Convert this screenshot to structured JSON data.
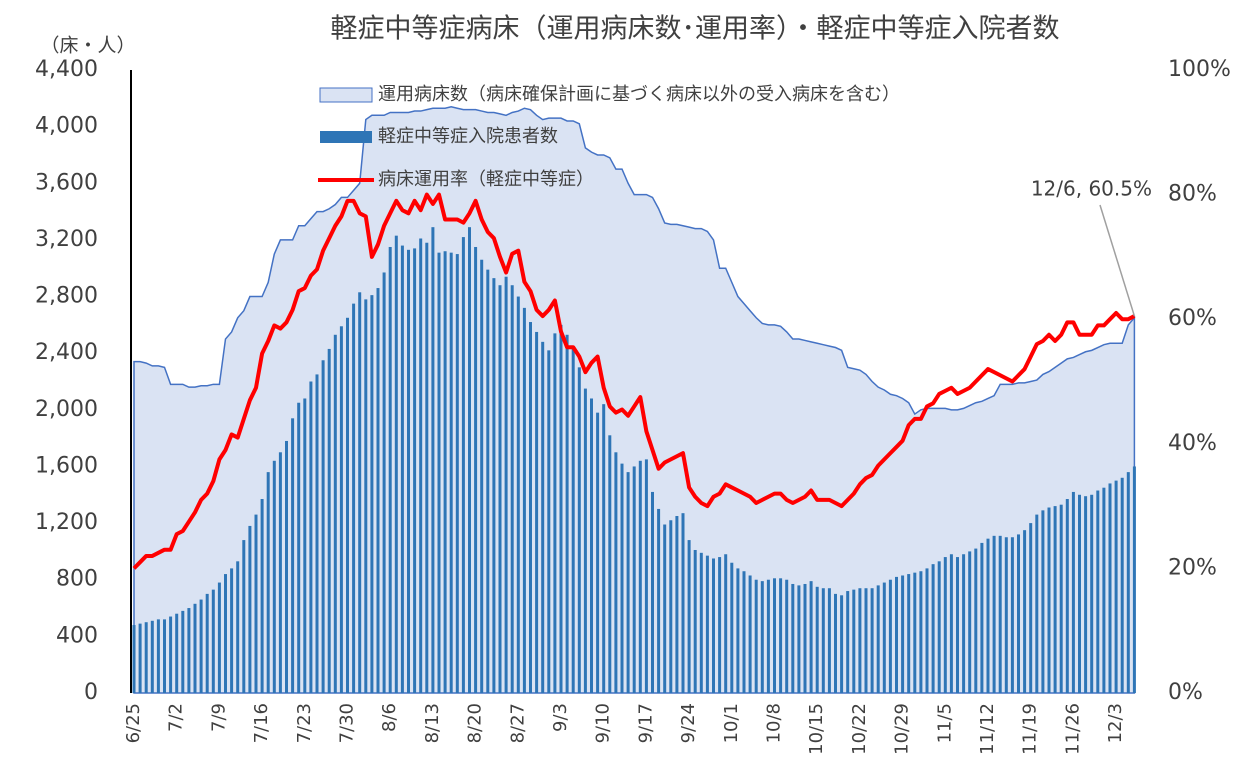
{
  "chart_data": {
    "type": "combo",
    "title": "軽症中等症病床（運用病床数･運用率）・軽症中等症入院者数",
    "y_label": "（床・人）",
    "annotation": "12/6, 60.5%",
    "categories": [
      "6/25",
      null,
      null,
      null,
      null,
      null,
      null,
      "7/2",
      null,
      null,
      null,
      null,
      null,
      null,
      "7/9",
      null,
      null,
      null,
      null,
      null,
      null,
      "7/16",
      null,
      null,
      null,
      null,
      null,
      null,
      "7/23",
      null,
      null,
      null,
      null,
      null,
      null,
      "7/30",
      null,
      null,
      null,
      null,
      null,
      null,
      "8/6",
      null,
      null,
      null,
      null,
      null,
      null,
      "8/13",
      null,
      null,
      null,
      null,
      null,
      null,
      "8/20",
      null,
      null,
      null,
      null,
      null,
      null,
      "8/27",
      null,
      null,
      null,
      null,
      null,
      null,
      "9/3",
      null,
      null,
      null,
      null,
      null,
      null,
      "9/10",
      null,
      null,
      null,
      null,
      null,
      null,
      "9/17",
      null,
      null,
      null,
      null,
      null,
      null,
      "9/24",
      null,
      null,
      null,
      null,
      null,
      null,
      "10/1",
      null,
      null,
      null,
      null,
      null,
      null,
      "10/8",
      null,
      null,
      null,
      null,
      null,
      null,
      "10/15",
      null,
      null,
      null,
      null,
      null,
      null,
      "10/22",
      null,
      null,
      null,
      null,
      null,
      null,
      "10/29",
      null,
      null,
      null,
      null,
      null,
      null,
      "11/5",
      null,
      null,
      null,
      null,
      null,
      null,
      "11/12",
      null,
      null,
      null,
      null,
      null,
      null,
      "11/19",
      null,
      null,
      null,
      null,
      null,
      null,
      "11/26",
      null,
      null,
      null,
      null,
      null,
      null,
      "12/3",
      null,
      null,
      null
    ],
    "series": [
      {
        "name": "運用病床数（病床確保計画に基づく病床以外の受入病床を含む）",
        "type": "area",
        "color": "#dae3f3",
        "stroke": "#4472c4",
        "values": [
          2340,
          2340,
          2330,
          2310,
          2310,
          2300,
          2180,
          2180,
          2180,
          2160,
          2160,
          2170,
          2170,
          2180,
          2180,
          2500,
          2550,
          2650,
          2700,
          2800,
          2800,
          2800,
          2900,
          3100,
          3200,
          3200,
          3200,
          3300,
          3300,
          3350,
          3400,
          3400,
          3420,
          3450,
          3500,
          3500,
          3550,
          3600,
          4050,
          4080,
          4080,
          4080,
          4100,
          4100,
          4100,
          4100,
          4110,
          4110,
          4120,
          4130,
          4130,
          4130,
          4140,
          4130,
          4120,
          4120,
          4120,
          4110,
          4100,
          4100,
          4090,
          4080,
          4100,
          4110,
          4130,
          4120,
          4080,
          4050,
          4060,
          4060,
          4060,
          4040,
          4040,
          4020,
          3850,
          3820,
          3800,
          3800,
          3780,
          3700,
          3700,
          3600,
          3520,
          3520,
          3520,
          3500,
          3420,
          3320,
          3310,
          3310,
          3300,
          3290,
          3280,
          3280,
          3260,
          3200,
          3000,
          3000,
          2900,
          2800,
          2750,
          2700,
          2650,
          2610,
          2600,
          2600,
          2590,
          2550,
          2500,
          2500,
          2490,
          2480,
          2470,
          2460,
          2450,
          2440,
          2420,
          2300,
          2290,
          2280,
          2250,
          2200,
          2160,
          2140,
          2110,
          2100,
          2080,
          2050,
          1970,
          2000,
          2010,
          2010,
          2010,
          2010,
          2000,
          2000,
          2010,
          2030,
          2050,
          2060,
          2080,
          2100,
          2180,
          2180,
          2180,
          2190,
          2190,
          2200,
          2210,
          2250,
          2270,
          2300,
          2330,
          2360,
          2370,
          2390,
          2410,
          2420,
          2440,
          2460,
          2470,
          2470,
          2470,
          2600,
          2650
        ]
      },
      {
        "name": "軽症中等症入院患者数",
        "type": "bar",
        "color": "#2e75b6",
        "values": [
          480,
          490,
          500,
          510,
          520,
          520,
          540,
          560,
          580,
          600,
          630,
          660,
          700,
          730,
          780,
          840,
          880,
          930,
          1080,
          1180,
          1260,
          1370,
          1560,
          1640,
          1700,
          1780,
          1940,
          2050,
          2080,
          2200,
          2250,
          2350,
          2430,
          2530,
          2590,
          2650,
          2750,
          2830,
          2780,
          2810,
          2860,
          2970,
          3150,
          3230,
          3160,
          3130,
          3140,
          3210,
          3180,
          3290,
          3110,
          3120,
          3110,
          3100,
          3220,
          3290,
          3150,
          3060,
          2990,
          2930,
          2880,
          2940,
          2880,
          2800,
          2720,
          2620,
          2550,
          2480,
          2420,
          2540,
          2600,
          2530,
          2440,
          2300,
          2150,
          2080,
          1980,
          2040,
          1820,
          1700,
          1620,
          1560,
          1600,
          1640,
          1650,
          1420,
          1300,
          1190,
          1220,
          1250,
          1270,
          1080,
          1010,
          990,
          970,
          950,
          960,
          980,
          920,
          880,
          860,
          830,
          800,
          790,
          800,
          810,
          810,
          800,
          770,
          760,
          770,
          790,
          750,
          740,
          740,
          700,
          690,
          720,
          730,
          740,
          740,
          740,
          760,
          780,
          800,
          820,
          830,
          840,
          850,
          860,
          880,
          910,
          930,
          960,
          980,
          960,
          980,
          1000,
          1020,
          1060,
          1090,
          1110,
          1110,
          1100,
          1100,
          1120,
          1150,
          1200,
          1260,
          1290,
          1310,
          1320,
          1330,
          1370,
          1420,
          1400,
          1390,
          1400,
          1430,
          1450,
          1480,
          1500,
          1520,
          1560,
          1600
        ]
      },
      {
        "name": "病床運用率（軽症中等症）",
        "type": "line",
        "axis": "y2",
        "color": "#ff0000",
        "values": [
          20,
          21,
          22,
          22,
          22.5,
          23,
          23,
          25.5,
          26,
          27.5,
          29,
          31,
          32,
          34,
          37.5,
          39,
          41.5,
          41,
          44,
          47,
          49,
          54.5,
          56.5,
          59,
          58.5,
          59.5,
          61.5,
          64.5,
          65,
          67,
          68,
          71,
          73,
          75,
          76.5,
          79,
          79,
          77,
          76.5,
          70,
          72,
          75,
          77,
          79,
          77.5,
          77,
          79,
          77.5,
          80,
          78.5,
          80,
          76,
          76,
          76,
          75.5,
          77,
          79,
          76,
          74,
          73,
          70,
          67.5,
          70.5,
          71,
          66,
          64.5,
          61.5,
          60.5,
          61.5,
          63,
          58,
          55.5,
          55.5,
          54,
          51.5,
          53,
          54,
          49,
          46,
          45,
          45.5,
          44.5,
          46,
          47.5,
          42,
          39,
          36,
          37,
          37.5,
          38,
          38.5,
          33,
          31.5,
          30.5,
          30,
          31.5,
          32,
          33.5,
          33,
          32.5,
          32,
          31.5,
          30.5,
          31,
          31.5,
          32,
          32,
          31,
          30.5,
          31,
          31.5,
          32.5,
          31,
          31,
          31,
          30.5,
          30,
          31,
          32,
          33.5,
          34.5,
          35,
          36.5,
          37.5,
          38.5,
          39.5,
          40.5,
          43,
          44,
          44,
          46,
          46.5,
          48,
          48.5,
          49,
          48,
          48.5,
          49,
          50,
          51,
          52,
          51.5,
          51,
          50.5,
          50,
          51,
          52,
          54,
          56,
          56.5,
          57.5,
          56.5,
          57.5,
          59.5,
          59.5,
          57.5,
          57.5,
          57.5,
          59,
          59,
          60,
          61,
          60,
          60,
          60.5
        ]
      }
    ],
    "ylim": [
      0,
      4400
    ],
    "yticks": [
      0,
      400,
      800,
      {
        "value": 1200,
        "label": "1,200"
      },
      {
        "value": 1600,
        "label": "1,600"
      },
      {
        "value": 2000,
        "label": "2,000"
      },
      {
        "value": 2400,
        "label": "2,400"
      },
      {
        "value": 2800,
        "label": "2,800"
      },
      {
        "value": 3200,
        "label": "3,200"
      },
      {
        "value": 3600,
        "label": "3,600"
      },
      {
        "value": 4000,
        "label": "4,000"
      },
      {
        "value": 4400,
        "label": "4,400"
      }
    ],
    "y2lim": [
      0,
      100
    ],
    "y2ticks": [
      {
        "value": 0,
        "label": "0%"
      },
      {
        "value": 20,
        "label": "20%"
      },
      {
        "value": 40,
        "label": "40%"
      },
      {
        "value": 60,
        "label": "60%"
      },
      {
        "value": 80,
        "label": "80%"
      },
      {
        "value": 100,
        "label": "100%"
      }
    ]
  }
}
